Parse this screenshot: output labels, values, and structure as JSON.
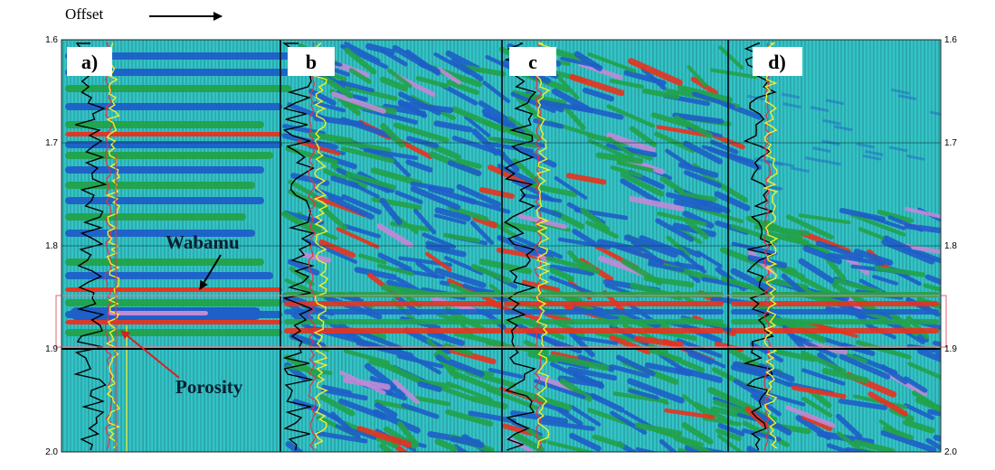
{
  "header": {
    "offset_label": "Offset"
  },
  "axis": {
    "tick_labels": [
      "1.6",
      "1.7",
      "1.8",
      "1.9",
      "2.0"
    ]
  },
  "panels": [
    {
      "label": "a)"
    },
    {
      "label": "b"
    },
    {
      "label": "c"
    },
    {
      "label": "d)"
    }
  ],
  "annotations": {
    "horizon": "Wabamu",
    "zone": "Porosity"
  },
  "colors": {
    "background": "#33c4c6",
    "trace": "#1a5f6a",
    "blue_event": "#1e5fc8",
    "green_event": "#22a24a",
    "red_event": "#e8321e",
    "magenta_event": "#c08ad8",
    "curve_black": "#000000",
    "curve_yellow": "#f2ee2a",
    "curve_red": "#e4304a",
    "arrow_red": "#d82020",
    "highlight_box": "#e87a8a"
  }
}
